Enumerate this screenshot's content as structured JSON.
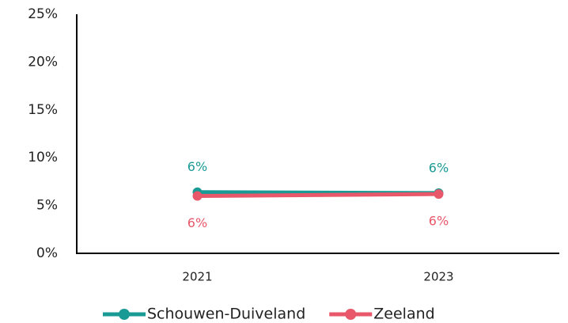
{
  "chart_data": {
    "type": "line",
    "categories": [
      "2021",
      "2023"
    ],
    "series": [
      {
        "name": "Schouwen-Duiveland",
        "color": "#1a9a94",
        "values": [
          6.4,
          6.3
        ],
        "value_labels": [
          "6%",
          "6%"
        ]
      },
      {
        "name": "Zeeland",
        "color": "#e8586a",
        "values": [
          6.0,
          6.2
        ],
        "value_labels": [
          "6%",
          "6%"
        ]
      }
    ],
    "ylim": [
      0,
      25
    ],
    "yticks": [
      {
        "value": 0,
        "label": "0%"
      },
      {
        "value": 5,
        "label": "5%"
      },
      {
        "value": 10,
        "label": "10%"
      },
      {
        "value": 15,
        "label": "15%"
      },
      {
        "value": 20,
        "label": "20%"
      },
      {
        "value": 25,
        "label": "25%"
      }
    ],
    "grid": false,
    "legend": "bottom"
  }
}
